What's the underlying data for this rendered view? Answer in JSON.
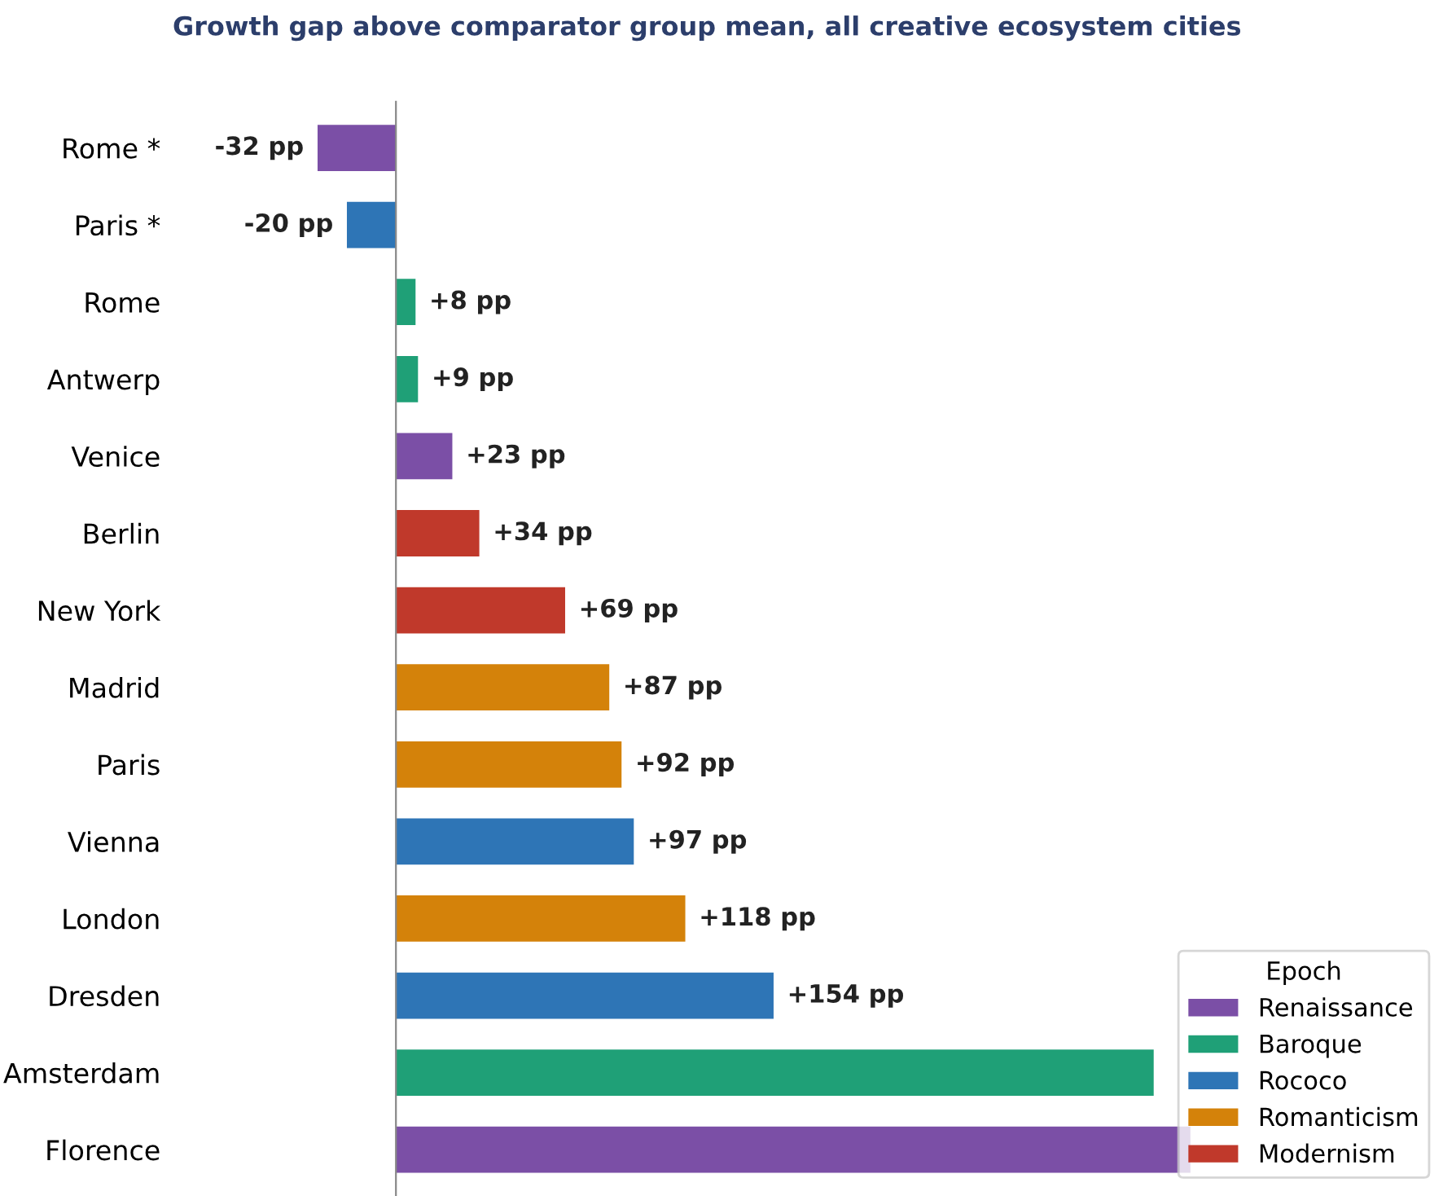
{
  "chart_data": {
    "type": "bar",
    "orientation": "horizontal",
    "title": "Growth gap above comparator group mean, all creative ecosystem cities",
    "legend_title": "Epoch",
    "legend": "bottom right",
    "categories": [
      "Rome *",
      "Paris *",
      "Rome",
      "Antwerp",
      "Venice",
      "Berlin",
      "New York",
      "Madrid",
      "Paris",
      "Vienna",
      "London",
      "Dresden",
      "Amsterdam",
      "Florence"
    ],
    "series": [
      {
        "name": "Renaissance",
        "color": "#7b4fa6",
        "values": [
          -32,
          null,
          null,
          null,
          23,
          null,
          null,
          null,
          null,
          null,
          null,
          null,
          null,
          324
        ],
        "value_labels": [
          "-32 pp",
          null,
          null,
          null,
          "+23 pp",
          null,
          null,
          null,
          null,
          null,
          null,
          null,
          null,
          null
        ]
      },
      {
        "name": "Baroque",
        "color": "#1fa077",
        "values": [
          null,
          null,
          8,
          9,
          null,
          null,
          null,
          null,
          null,
          null,
          null,
          null,
          309,
          null
        ],
        "value_labels": [
          null,
          null,
          "+8 pp",
          "+9 pp",
          null,
          null,
          null,
          null,
          null,
          null,
          null,
          null,
          null,
          null
        ]
      },
      {
        "name": "Rococo",
        "color": "#2e75b6",
        "values": [
          null,
          -20,
          null,
          null,
          null,
          null,
          null,
          null,
          null,
          97,
          null,
          154,
          null,
          null
        ],
        "value_labels": [
          null,
          "-20 pp",
          null,
          null,
          null,
          null,
          null,
          null,
          null,
          "+97 pp",
          null,
          "+154 pp",
          null,
          null
        ]
      },
      {
        "name": "Romanticism",
        "color": "#d4820a",
        "values": [
          null,
          null,
          null,
          null,
          null,
          null,
          null,
          87,
          92,
          null,
          118,
          null,
          null,
          null
        ],
        "value_labels": [
          null,
          null,
          null,
          null,
          null,
          null,
          null,
          "+87 pp",
          "+92 pp",
          null,
          "+118 pp",
          null,
          null,
          null
        ]
      },
      {
        "name": "Modernism",
        "color": "#c0392b",
        "values": [
          null,
          null,
          null,
          null,
          null,
          34,
          69,
          null,
          null,
          null,
          null,
          null,
          null,
          null
        ],
        "value_labels": [
          null,
          null,
          null,
          null,
          null,
          "+34 pp",
          "+69 pp",
          null,
          null,
          null,
          null,
          null,
          null,
          null
        ]
      }
    ]
  }
}
